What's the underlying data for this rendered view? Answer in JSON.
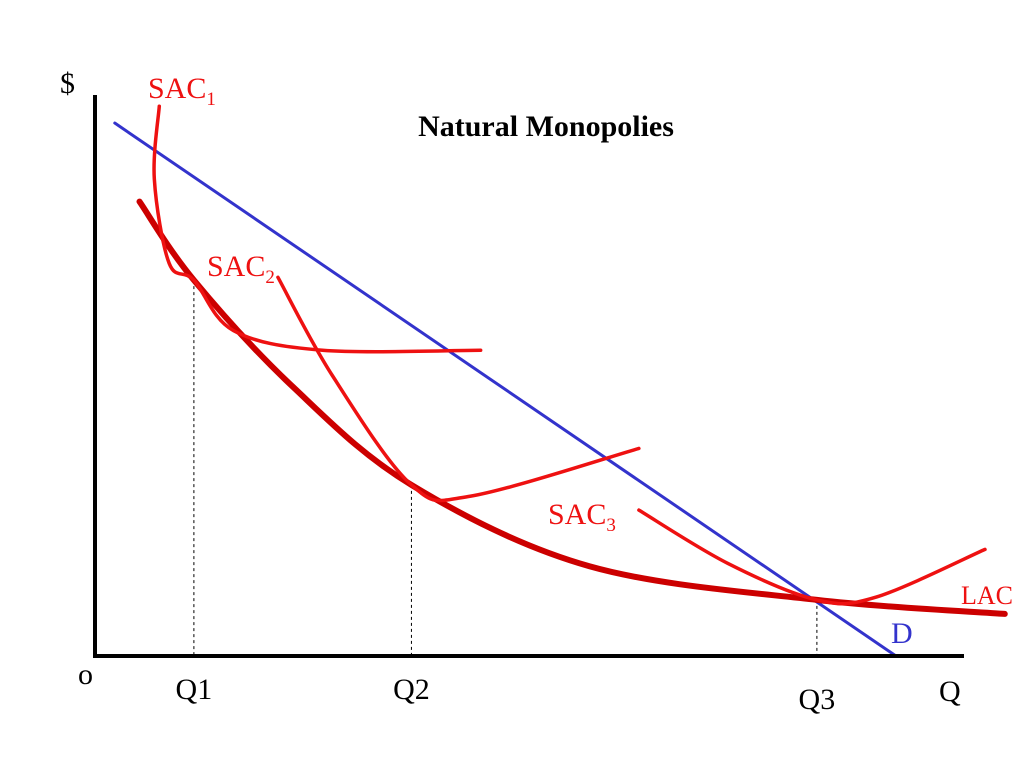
{
  "chart_data": {
    "type": "line",
    "title": "Natural Monopolies",
    "ylabel": "$",
    "xlabel": "Q",
    "origin_label": "o",
    "x_ticks": [
      {
        "label": "Q1",
        "value": 1
      },
      {
        "label": "Q2",
        "value": 3.2
      },
      {
        "label": "Q3",
        "value": 7.3
      }
    ],
    "xlim": [
      0,
      9
    ],
    "ylim": [
      0,
      10
    ],
    "grid": false,
    "colors": {
      "LAC": "#cc0000",
      "SAC": "#ee1111",
      "D": "#3333cc",
      "guides": "#000000"
    },
    "series": [
      {
        "name": "D",
        "label": "D",
        "points": [
          [
            0.2,
            9.5
          ],
          [
            8.1,
            0.0
          ]
        ]
      },
      {
        "name": "LAC",
        "label": "LAC",
        "points": [
          [
            0.45,
            8.1
          ],
          [
            1.0,
            6.7
          ],
          [
            2.0,
            4.8
          ],
          [
            3.2,
            3.05
          ],
          [
            5.0,
            1.6
          ],
          [
            7.3,
            1.0
          ],
          [
            9.2,
            0.75
          ]
        ]
      },
      {
        "name": "SAC_1",
        "label": "SAC",
        "subscript": "1",
        "points": [
          [
            0.65,
            9.8
          ],
          [
            0.6,
            8.5
          ],
          [
            0.75,
            7.0
          ],
          [
            1.0,
            6.7
          ],
          [
            1.4,
            5.8
          ],
          [
            2.3,
            5.45
          ],
          [
            3.9,
            5.45
          ]
        ]
      },
      {
        "name": "SAC_2",
        "label": "SAC",
        "subscript": "2",
        "points": [
          [
            1.85,
            6.75
          ],
          [
            2.4,
            5.0
          ],
          [
            3.2,
            3.05
          ],
          [
            3.8,
            2.85
          ],
          [
            5.5,
            3.7
          ]
        ]
      },
      {
        "name": "SAC_3",
        "label": "SAC",
        "subscript": "3",
        "points": [
          [
            5.5,
            2.6
          ],
          [
            6.4,
            1.65
          ],
          [
            7.3,
            1.0
          ],
          [
            7.9,
            1.05
          ],
          [
            9.0,
            1.9
          ]
        ]
      }
    ]
  }
}
